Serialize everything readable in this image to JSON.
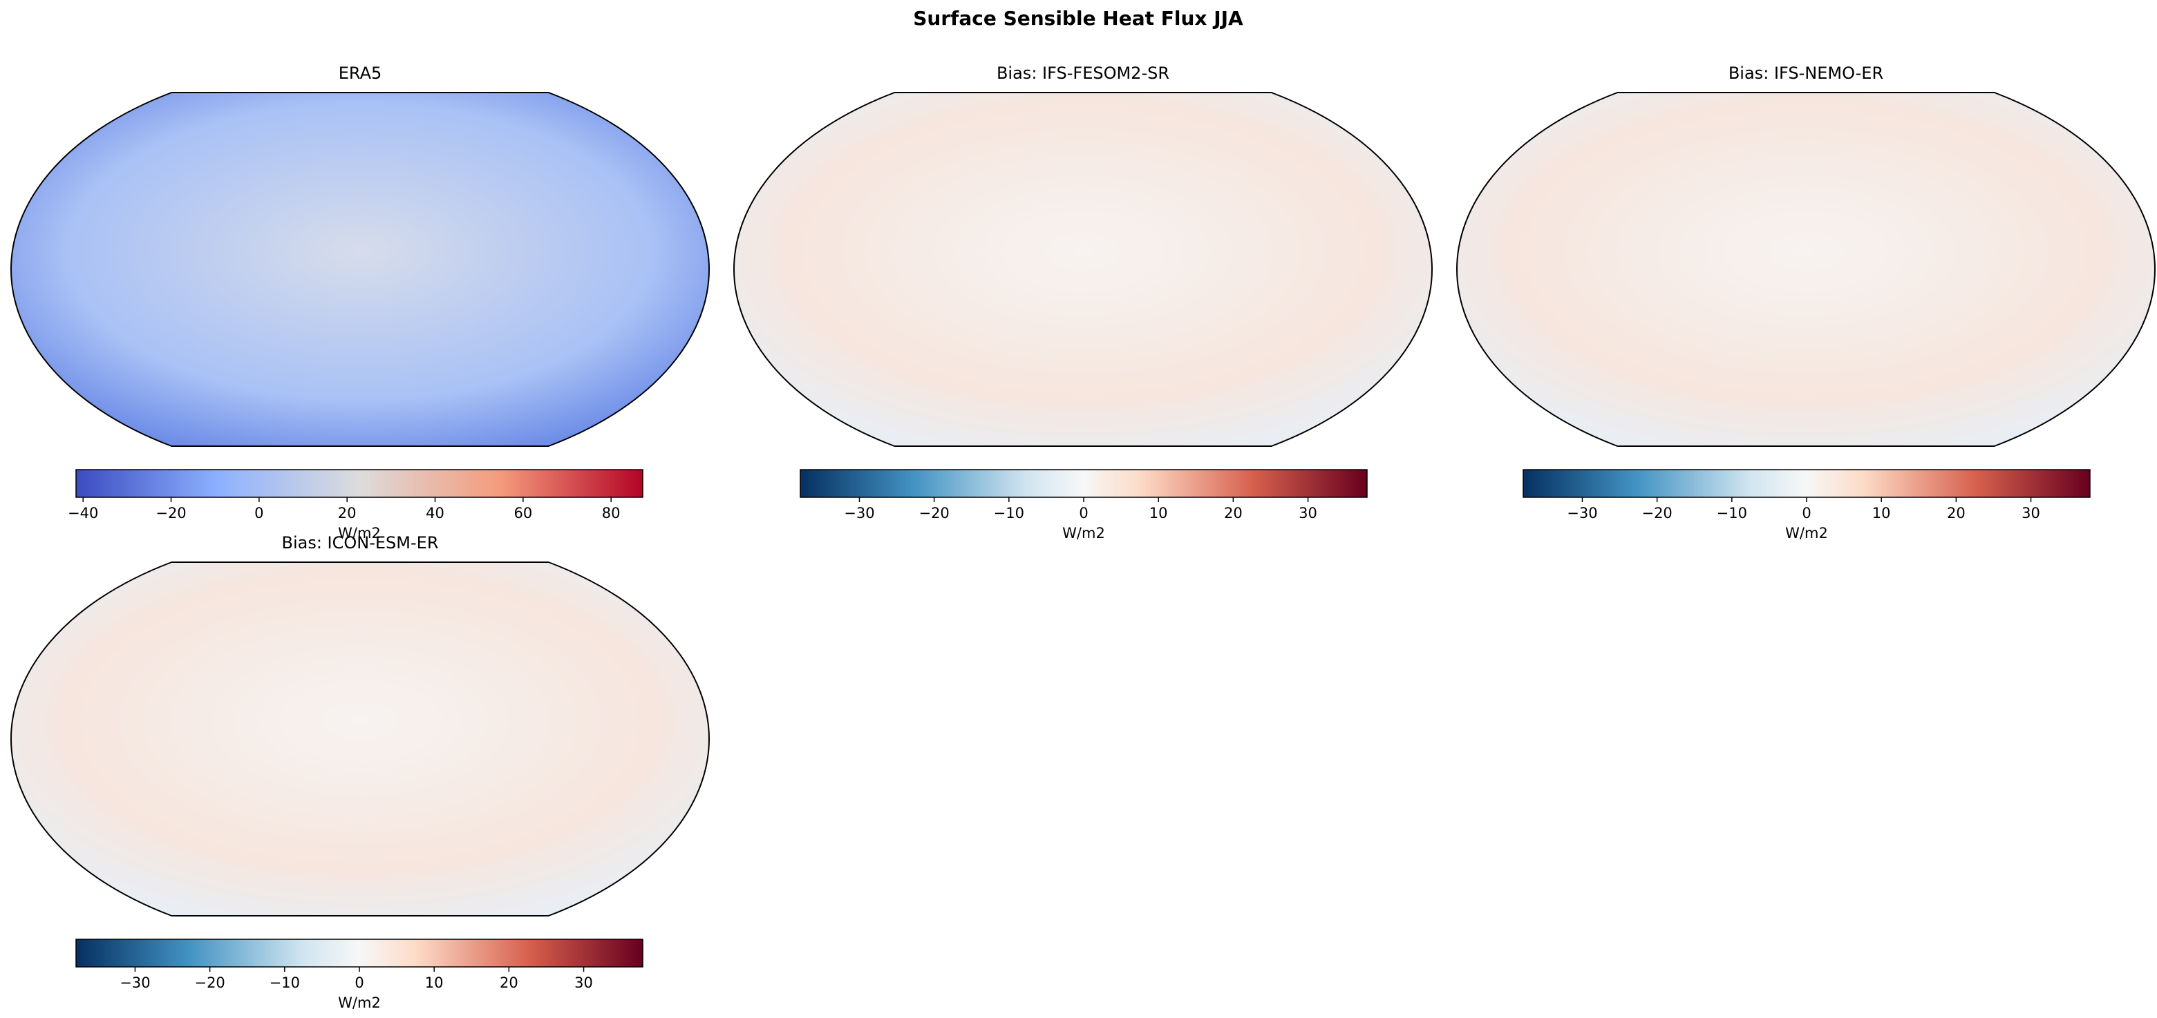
{
  "title": "Surface Sensible Heat Flux JJA",
  "panels": [
    {
      "title": "ERA5",
      "colormap": "coolwarm",
      "colorbar": {
        "label": "W/m2",
        "range": [
          -41.6,
          87.2
        ],
        "ticks": [
          {
            "value": -40,
            "label": "−40"
          },
          {
            "value": -20,
            "label": "−20"
          },
          0,
          20,
          40,
          60,
          80
        ]
      }
    },
    {
      "title": "Bias: IFS-FESOM2-SR",
      "colormap": "RdBu_r",
      "colorbar": {
        "label": "W/m2",
        "range": [
          -37.9,
          37.9
        ],
        "ticks": [
          {
            "value": -30,
            "label": "−30"
          },
          {
            "value": -20,
            "label": "−20"
          },
          {
            "value": -10,
            "label": "−10"
          },
          0,
          10,
          20,
          30
        ]
      }
    },
    {
      "title": "Bias: IFS-NEMO-ER",
      "colormap": "RdBu_r",
      "colorbar": {
        "label": "W/m2",
        "range": [
          -37.9,
          37.9
        ],
        "ticks": [
          {
            "value": -30,
            "label": "−30"
          },
          {
            "value": -20,
            "label": "−20"
          },
          {
            "value": -10,
            "label": "−10"
          },
          0,
          10,
          20,
          30
        ]
      }
    },
    {
      "title": "Bias: ICON-ESM-ER",
      "colormap": "RdBu_r",
      "colorbar": {
        "label": "W/m2",
        "range": [
          -37.9,
          37.9
        ],
        "ticks": [
          {
            "value": -30,
            "label": "−30"
          },
          {
            "value": -20,
            "label": "−20"
          },
          {
            "value": -10,
            "label": "−10"
          },
          0,
          10,
          20,
          30
        ]
      }
    }
  ]
}
